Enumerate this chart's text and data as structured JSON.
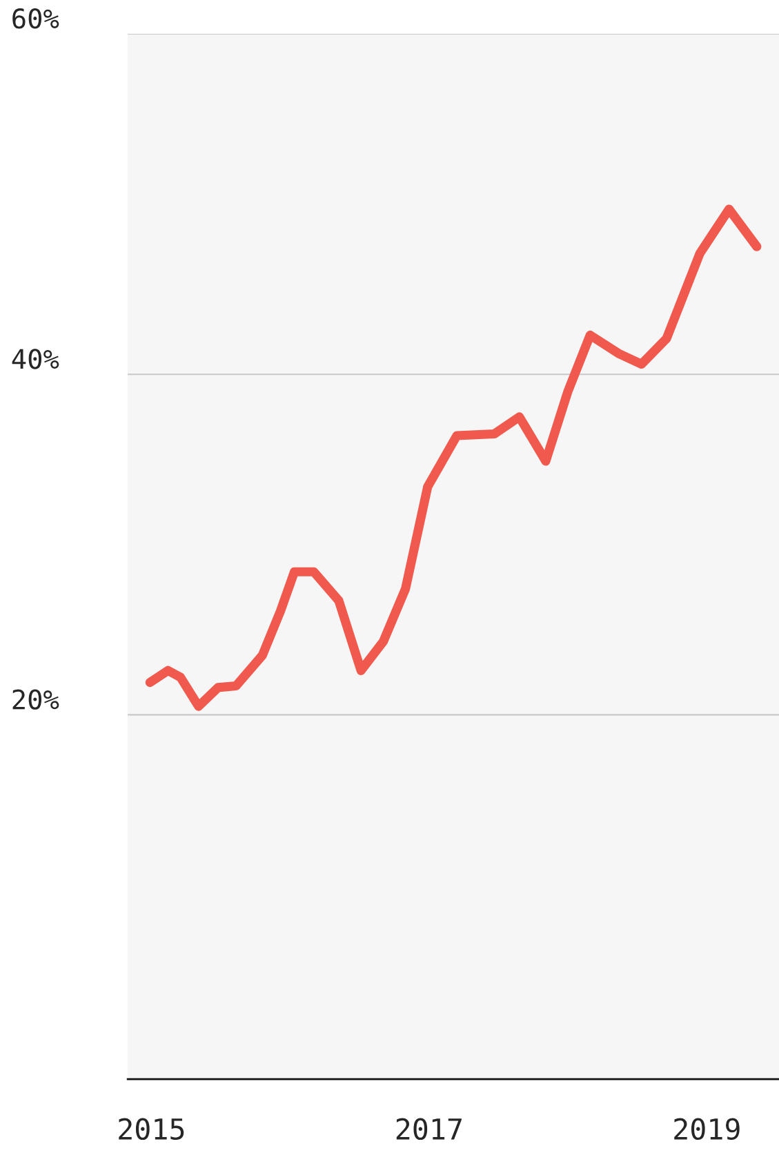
{
  "chart_data": {
    "type": "line",
    "x": [
      2014.99,
      2015.12,
      2015.21,
      2015.34,
      2015.48,
      2015.61,
      2015.8,
      2015.93,
      2016.03,
      2016.17,
      2016.35,
      2016.51,
      2016.67,
      2016.83,
      2016.99,
      2017.2,
      2017.47,
      2017.65,
      2017.84,
      2018.0,
      2018.16,
      2018.37,
      2018.53,
      2018.71,
      2018.95,
      2019.16,
      2019.36
    ],
    "series": [
      {
        "color": "#f05a4e",
        "values": [
          21.9,
          22.6,
          22.2,
          20.5,
          21.6,
          21.7,
          23.5,
          26.1,
          28.4,
          28.4,
          26.7,
          22.6,
          24.3,
          27.4,
          33.4,
          36.4,
          36.5,
          37.5,
          34.9,
          39.0,
          42.3,
          41.2,
          40.6,
          42.1,
          47.1,
          49.7,
          47.5
        ]
      }
    ],
    "xlim": [
      2014.83,
      2019.52
    ],
    "xticks": [
      2015,
      2017,
      2019
    ],
    "ylim": [
      -1.4,
      60
    ],
    "yticks": [
      {
        "value": 20,
        "label": "20%"
      },
      {
        "value": 40,
        "label": "40%"
      },
      {
        "value": 60,
        "label": "60%"
      }
    ],
    "grid": "y",
    "line_style": "solid"
  }
}
